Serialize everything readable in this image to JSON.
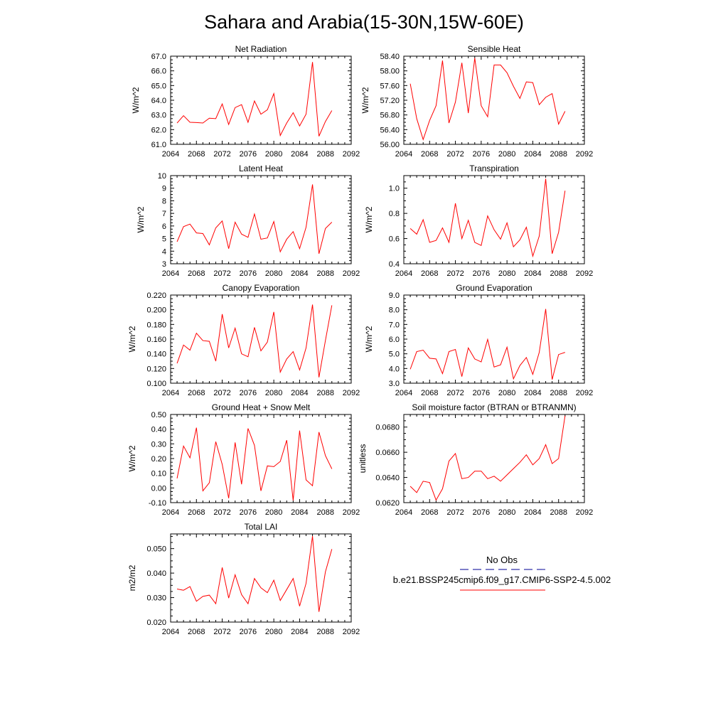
{
  "figure": {
    "title": "Sahara and Arabia(15-30N,15W-60E)"
  },
  "legend": {
    "obs_label": "No Obs",
    "obs_color": "#3333aa",
    "model_label": "b.e21.BSSP245cmip6.f09_g17.CMIP6-SSP2-4.5.002",
    "model_color": "#ff0000"
  },
  "chart_data": [
    {
      "type": "line",
      "title": "Net Radiation",
      "ylabel": "W/m^2",
      "xlim": [
        2064,
        2092
      ],
      "xticks": [
        2064,
        2068,
        2072,
        2076,
        2080,
        2084,
        2088,
        2092
      ],
      "ylim": [
        61.0,
        67.0
      ],
      "yticks": [
        "61.0",
        "62.0",
        "63.0",
        "64.0",
        "65.0",
        "66.0",
        "67.0"
      ],
      "x": [
        2065,
        2066,
        2067,
        2068,
        2069,
        2070,
        2071,
        2072,
        2073,
        2074,
        2075,
        2076,
        2077,
        2078,
        2079,
        2080,
        2081,
        2082,
        2083,
        2084,
        2085,
        2086,
        2087,
        2088,
        2089
      ],
      "series": [
        {
          "color": "#ff0000",
          "values": [
            62.45,
            62.95,
            62.5,
            62.48,
            62.45,
            62.78,
            62.75,
            63.75,
            62.35,
            63.5,
            63.7,
            62.5,
            63.95,
            63.05,
            63.35,
            64.45,
            61.6,
            62.45,
            63.15,
            62.25,
            63.05,
            66.6,
            61.55,
            62.55,
            63.3
          ]
        }
      ]
    },
    {
      "type": "line",
      "title": "Sensible Heat",
      "ylabel": "W/m^2",
      "xlim": [
        2064,
        2092
      ],
      "xticks": [
        2064,
        2068,
        2072,
        2076,
        2080,
        2084,
        2088,
        2092
      ],
      "ylim": [
        56.0,
        58.4
      ],
      "yticks": [
        "56.00",
        "56.40",
        "56.80",
        "57.20",
        "57.60",
        "58.00",
        "58.40"
      ],
      "x": [
        2065,
        2066,
        2067,
        2068,
        2069,
        2070,
        2071,
        2072,
        2073,
        2074,
        2075,
        2076,
        2077,
        2078,
        2079,
        2080,
        2081,
        2082,
        2083,
        2084,
        2085,
        2086,
        2087,
        2088,
        2089
      ],
      "series": [
        {
          "color": "#ff0000",
          "values": [
            57.65,
            56.7,
            56.13,
            56.65,
            57.05,
            58.28,
            56.58,
            57.15,
            58.22,
            56.85,
            58.35,
            57.05,
            56.75,
            58.16,
            58.16,
            57.95,
            57.58,
            57.25,
            57.7,
            57.68,
            57.08,
            57.28,
            57.38,
            56.55,
            56.9
          ]
        }
      ]
    },
    {
      "type": "line",
      "title": "Latent Heat",
      "ylabel": "W/m^2",
      "xlim": [
        2064,
        2092
      ],
      "xticks": [
        2064,
        2068,
        2072,
        2076,
        2080,
        2084,
        2088,
        2092
      ],
      "ylim": [
        3,
        10
      ],
      "yticks": [
        "3",
        "4",
        "5",
        "6",
        "7",
        "8",
        "9",
        "10"
      ],
      "x": [
        2065,
        2066,
        2067,
        2068,
        2069,
        2070,
        2071,
        2072,
        2073,
        2074,
        2075,
        2076,
        2077,
        2078,
        2079,
        2080,
        2081,
        2082,
        2083,
        2084,
        2085,
        2086,
        2087,
        2088,
        2089
      ],
      "series": [
        {
          "color": "#ff0000",
          "values": [
            4.75,
            5.95,
            6.15,
            5.45,
            5.4,
            4.5,
            5.85,
            6.4,
            4.2,
            6.3,
            5.35,
            5.1,
            6.95,
            4.95,
            5.05,
            6.35,
            3.95,
            4.95,
            5.55,
            4.2,
            5.9,
            9.3,
            3.8,
            5.8,
            6.3
          ]
        }
      ]
    },
    {
      "type": "line",
      "title": "Transpiration",
      "ylabel": "W/m^2",
      "xlim": [
        2064,
        2092
      ],
      "xticks": [
        2064,
        2068,
        2072,
        2076,
        2080,
        2084,
        2088,
        2092
      ],
      "ylim": [
        0.4,
        1.1
      ],
      "yticks": [
        "0.4",
        "0.6",
        "0.8",
        "1.0"
      ],
      "x": [
        2065,
        2066,
        2067,
        2068,
        2069,
        2070,
        2071,
        2072,
        2073,
        2074,
        2075,
        2076,
        2077,
        2078,
        2079,
        2080,
        2081,
        2082,
        2083,
        2084,
        2085,
        2086,
        2087,
        2088,
        2089
      ],
      "series": [
        {
          "color": "#ff0000",
          "values": [
            0.68,
            0.635,
            0.75,
            0.57,
            0.585,
            0.685,
            0.57,
            0.88,
            0.6,
            0.745,
            0.57,
            0.545,
            0.78,
            0.67,
            0.595,
            0.725,
            0.535,
            0.59,
            0.69,
            0.46,
            0.62,
            1.075,
            0.48,
            0.65,
            0.98
          ]
        }
      ]
    },
    {
      "type": "line",
      "title": "Canopy Evaporation",
      "ylabel": "W/m^2",
      "xlim": [
        2064,
        2092
      ],
      "xticks": [
        2064,
        2068,
        2072,
        2076,
        2080,
        2084,
        2088,
        2092
      ],
      "ylim": [
        0.1,
        0.22
      ],
      "yticks": [
        "0.100",
        "0.120",
        "0.140",
        "0.160",
        "0.180",
        "0.200",
        "0.220"
      ],
      "x": [
        2065,
        2066,
        2067,
        2068,
        2069,
        2070,
        2071,
        2072,
        2073,
        2074,
        2075,
        2076,
        2077,
        2078,
        2079,
        2080,
        2081,
        2082,
        2083,
        2084,
        2085,
        2086,
        2087,
        2088,
        2089
      ],
      "series": [
        {
          "color": "#ff0000",
          "values": [
            0.127,
            0.152,
            0.145,
            0.168,
            0.158,
            0.157,
            0.13,
            0.194,
            0.148,
            0.175,
            0.14,
            0.136,
            0.176,
            0.144,
            0.156,
            0.197,
            0.115,
            0.133,
            0.143,
            0.118,
            0.148,
            0.207,
            0.108,
            0.158,
            0.206
          ]
        }
      ]
    },
    {
      "type": "line",
      "title": "Ground Evaporation",
      "ylabel": "W/m^2",
      "xlim": [
        2064,
        2092
      ],
      "xticks": [
        2064,
        2068,
        2072,
        2076,
        2080,
        2084,
        2088,
        2092
      ],
      "ylim": [
        3.0,
        9.0
      ],
      "yticks": [
        "3.0",
        "4.0",
        "5.0",
        "6.0",
        "7.0",
        "8.0",
        "9.0"
      ],
      "x": [
        2065,
        2066,
        2067,
        2068,
        2069,
        2070,
        2071,
        2072,
        2073,
        2074,
        2075,
        2076,
        2077,
        2078,
        2079,
        2080,
        2081,
        2082,
        2083,
        2084,
        2085,
        2086,
        2087,
        2088,
        2089
      ],
      "series": [
        {
          "color": "#ff0000",
          "values": [
            3.95,
            5.15,
            5.25,
            4.7,
            4.65,
            3.65,
            5.15,
            5.3,
            3.45,
            5.4,
            4.65,
            4.45,
            5.98,
            4.1,
            4.25,
            5.45,
            3.3,
            4.2,
            4.75,
            3.6,
            5.1,
            8.05,
            3.25,
            4.95,
            5.1
          ]
        }
      ]
    },
    {
      "type": "line",
      "title": "Ground Heat + Snow Melt",
      "ylabel": "W/m^2",
      "xlim": [
        2064,
        2092
      ],
      "xticks": [
        2064,
        2068,
        2072,
        2076,
        2080,
        2084,
        2088,
        2092
      ],
      "ylim": [
        -0.1,
        0.5
      ],
      "yticks": [
        "-0.10",
        "0.00",
        "0.10",
        "0.20",
        "0.30",
        "0.40",
        "0.50"
      ],
      "x": [
        2065,
        2066,
        2067,
        2068,
        2069,
        2070,
        2071,
        2072,
        2073,
        2074,
        2075,
        2076,
        2077,
        2078,
        2079,
        2080,
        2081,
        2082,
        2083,
        2084,
        2085,
        2086,
        2087,
        2088,
        2089
      ],
      "series": [
        {
          "color": "#ff0000",
          "values": [
            0.065,
            0.285,
            0.205,
            0.41,
            -0.02,
            0.035,
            0.315,
            0.16,
            -0.07,
            0.31,
            0.025,
            0.405,
            0.29,
            -0.02,
            0.15,
            0.145,
            0.18,
            0.325,
            -0.085,
            0.39,
            0.055,
            0.015,
            0.38,
            0.22,
            0.13
          ]
        }
      ]
    },
    {
      "type": "line",
      "title": "Soil moisture factor (BTRAN or BTRANMN)",
      "ylabel": "unitless",
      "xlim": [
        2064,
        2092
      ],
      "xticks": [
        2064,
        2068,
        2072,
        2076,
        2080,
        2084,
        2088,
        2092
      ],
      "ylim": [
        0.062,
        0.069
      ],
      "yticks": [
        "0.0620",
        "0.0640",
        "0.0660",
        "0.0680"
      ],
      "x": [
        2065,
        2066,
        2067,
        2068,
        2069,
        2070,
        2071,
        2072,
        2073,
        2074,
        2075,
        2076,
        2077,
        2078,
        2079,
        2080,
        2081,
        2082,
        2083,
        2084,
        2085,
        2086,
        2087,
        2088,
        2089
      ],
      "series": [
        {
          "color": "#ff0000",
          "values": [
            0.0633,
            0.0628,
            0.0637,
            0.0636,
            0.0622,
            0.0631,
            0.0653,
            0.0659,
            0.0639,
            0.064,
            0.0645,
            0.0645,
            0.0639,
            0.0641,
            0.0637,
            0.0642,
            0.0647,
            0.0652,
            0.0658,
            0.065,
            0.0655,
            0.0666,
            0.0651,
            0.0655,
            0.0689
          ]
        }
      ]
    },
    {
      "type": "line",
      "title": "Total LAI",
      "ylabel": "m2/m2",
      "xlim": [
        2064,
        2092
      ],
      "xticks": [
        2064,
        2068,
        2072,
        2076,
        2080,
        2084,
        2088,
        2092
      ],
      "ylim": [
        0.02,
        0.056
      ],
      "yticks": [
        "0.020",
        "0.030",
        "0.040",
        "0.050"
      ],
      "x": [
        2065,
        2066,
        2067,
        2068,
        2069,
        2070,
        2071,
        2072,
        2073,
        2074,
        2075,
        2076,
        2077,
        2078,
        2079,
        2080,
        2081,
        2082,
        2083,
        2084,
        2085,
        2086,
        2087,
        2088,
        2089
      ],
      "series": [
        {
          "color": "#ff0000",
          "values": [
            0.0335,
            0.033,
            0.0345,
            0.0285,
            0.0305,
            0.031,
            0.0275,
            0.0423,
            0.0298,
            0.0393,
            0.0312,
            0.0275,
            0.0378,
            0.034,
            0.032,
            0.0371,
            0.0288,
            0.0333,
            0.0378,
            0.0265,
            0.0358,
            0.0551,
            0.0242,
            0.0405,
            0.0498
          ]
        }
      ]
    }
  ]
}
